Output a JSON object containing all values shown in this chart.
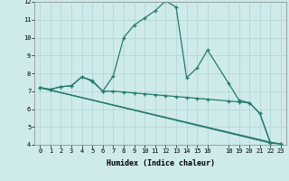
{
  "xlabel": "Humidex (Indice chaleur)",
  "xlim": [
    -0.5,
    23.5
  ],
  "ylim": [
    4,
    12
  ],
  "yticks": [
    4,
    5,
    6,
    7,
    8,
    9,
    10,
    11,
    12
  ],
  "xticks": [
    0,
    1,
    2,
    3,
    4,
    5,
    6,
    7,
    8,
    9,
    10,
    11,
    12,
    13,
    14,
    15,
    16,
    18,
    19,
    20,
    21,
    22,
    23
  ],
  "bg_color": "#ceeaea",
  "grid_color": "#b0d4d4",
  "line_color": "#267a6e",
  "line1": [
    [
      0,
      7.2
    ],
    [
      1,
      7.1
    ],
    [
      2,
      7.25
    ],
    [
      3,
      7.3
    ],
    [
      4,
      7.8
    ],
    [
      5,
      7.6
    ],
    [
      6,
      7.0
    ],
    [
      7,
      7.85
    ],
    [
      8,
      10.0
    ],
    [
      9,
      10.7
    ],
    [
      10,
      11.1
    ],
    [
      11,
      11.5
    ],
    [
      12,
      12.05
    ],
    [
      13,
      11.7
    ],
    [
      14,
      7.75
    ],
    [
      15,
      8.3
    ],
    [
      16,
      9.3
    ],
    [
      18,
      7.45
    ],
    [
      19,
      6.5
    ],
    [
      20,
      6.35
    ],
    [
      21,
      5.75
    ],
    [
      22,
      4.1
    ],
    [
      23,
      4.05
    ]
  ],
  "line2": [
    [
      0,
      7.2
    ],
    [
      1,
      7.1
    ],
    [
      2,
      7.25
    ],
    [
      3,
      7.3
    ],
    [
      4,
      7.8
    ],
    [
      5,
      7.55
    ],
    [
      6,
      7.0
    ],
    [
      7,
      7.0
    ],
    [
      8,
      6.95
    ],
    [
      9,
      6.9
    ],
    [
      10,
      6.85
    ],
    [
      11,
      6.8
    ],
    [
      12,
      6.75
    ],
    [
      13,
      6.7
    ],
    [
      14,
      6.65
    ],
    [
      15,
      6.6
    ],
    [
      16,
      6.55
    ],
    [
      18,
      6.45
    ],
    [
      19,
      6.4
    ],
    [
      20,
      6.35
    ],
    [
      21,
      5.75
    ],
    [
      22,
      4.1
    ],
    [
      23,
      4.05
    ]
  ],
  "line3": [
    [
      0,
      7.2
    ],
    [
      22,
      4.1
    ]
  ],
  "line4": [
    [
      0,
      7.2
    ],
    [
      22,
      4.15
    ],
    [
      23,
      4.05
    ]
  ]
}
